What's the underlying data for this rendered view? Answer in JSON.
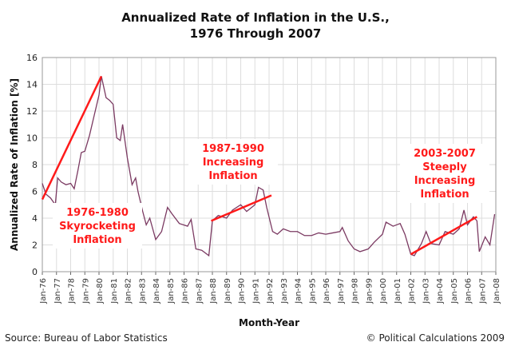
{
  "chart_data": {
    "type": "line",
    "title": "Annualized Rate of Inflation in the U.S.,\n1976 Through 2007",
    "xlabel": "Month-Year",
    "ylabel": "Annualized Rate of Inflation [%]",
    "ylim": [
      0,
      16
    ],
    "yticks": [
      0,
      2,
      4,
      6,
      8,
      10,
      12,
      14,
      16
    ],
    "xlim": [
      "1976-01",
      "2008-01"
    ],
    "xtick_labels": [
      "Jan-76",
      "Jan-77",
      "Jan-78",
      "Jan-79",
      "Jan-80",
      "Jan-81",
      "Jan-82",
      "Jan-83",
      "Jan-84",
      "Jan-85",
      "Jan-86",
      "Jan-87",
      "Jan-88",
      "Jan-89",
      "Jan-90",
      "Jan-91",
      "Jan-92",
      "Jan-93",
      "Jan-94",
      "Jan-95",
      "Jan-96",
      "Jan-97",
      "Jan-98",
      "Jan-99",
      "Jan-00",
      "Jan-01",
      "Jan-02",
      "Jan-03",
      "Jan-04",
      "Jan-05",
      "Jan-06",
      "Jan-07",
      "Jan-08"
    ],
    "grid": true,
    "series_color": "#7b3a62",
    "annotation_color": "#ff1a1a",
    "series": [
      {
        "x": [
          "1976-01",
          "1976-04",
          "1976-08",
          "1976-12",
          "1977-02",
          "1977-05",
          "1977-09",
          "1978-01",
          "1978-04",
          "1978-07",
          "1978-10",
          "1979-01",
          "1979-05",
          "1979-09",
          "1980-01",
          "1980-03",
          "1980-07",
          "1980-10",
          "1981-01",
          "1981-04",
          "1981-07",
          "1981-09",
          "1982-01",
          "1982-05",
          "1982-08",
          "1982-10",
          "1983-02",
          "1983-05",
          "1983-08",
          "1984-01",
          "1984-06",
          "1984-11",
          "1985-03",
          "1985-09",
          "1986-04",
          "1986-07",
          "1986-11",
          "1987-04",
          "1987-10",
          "1988-01",
          "1988-06",
          "1989-01",
          "1989-06",
          "1990-01",
          "1990-06",
          "1991-01",
          "1991-04",
          "1991-08",
          "1991-11",
          "1992-04",
          "1992-08",
          "1993-01",
          "1993-07",
          "1994-01",
          "1994-07",
          "1995-01",
          "1995-07",
          "1996-01",
          "1996-07",
          "1997-01",
          "1997-03",
          "1997-08",
          "1998-01",
          "1998-06",
          "1999-01",
          "1999-06",
          "2000-01",
          "2000-04",
          "2000-10",
          "2001-04",
          "2001-08",
          "2002-01",
          "2002-04",
          "2002-10",
          "2003-02",
          "2003-06",
          "2004-01",
          "2004-06",
          "2005-01",
          "2005-06",
          "2005-10",
          "2006-01",
          "2006-06",
          "2006-09",
          "2006-11",
          "2007-04",
          "2007-08",
          "2007-12"
        ],
        "y": [
          6.6,
          5.8,
          5.5,
          5.0,
          7.0,
          6.7,
          6.5,
          6.6,
          6.2,
          7.5,
          8.9,
          9.0,
          10.2,
          11.7,
          13.2,
          14.6,
          13.0,
          12.8,
          12.5,
          10.0,
          9.8,
          11.0,
          8.5,
          6.5,
          7.0,
          6.0,
          4.5,
          3.5,
          4.0,
          2.4,
          3.0,
          4.8,
          4.3,
          3.6,
          3.4,
          3.9,
          1.7,
          1.6,
          1.2,
          3.8,
          4.2,
          4.0,
          4.6,
          5.0,
          4.5,
          5.0,
          6.3,
          6.1,
          4.8,
          3.0,
          2.8,
          3.2,
          3.0,
          3.0,
          2.7,
          2.7,
          2.9,
          2.8,
          2.9,
          3.0,
          3.3,
          2.3,
          1.7,
          1.5,
          1.7,
          2.2,
          2.8,
          3.7,
          3.4,
          3.6,
          2.8,
          1.3,
          1.2,
          2.1,
          3.0,
          2.1,
          2.0,
          3.0,
          2.8,
          3.2,
          4.6,
          3.5,
          4.1,
          3.8,
          1.5,
          2.6,
          2.0,
          4.3
        ]
      }
    ],
    "annotations": [
      {
        "lines": [
          "1976-1980",
          "Skyrocketing",
          "Inflation"
        ],
        "trend": {
          "x": [
            "1976-01",
            "1980-03"
          ],
          "y": [
            5.4,
            14.6
          ]
        }
      },
      {
        "lines": [
          "1987-1990",
          "Increasing",
          "Inflation"
        ],
        "trend": {
          "x": [
            "1987-12",
            "1992-03"
          ],
          "y": [
            3.8,
            5.7
          ]
        }
      },
      {
        "lines": [
          "2003-2007",
          "Steeply",
          "Increasing",
          "Inflation"
        ],
        "trend": {
          "x": [
            "2002-01",
            "2006-09"
          ],
          "y": [
            1.3,
            4.1
          ]
        }
      }
    ]
  },
  "footer": {
    "source": "Source: Bureau of Labor Statistics",
    "credit": "© Political Calculations 2009"
  }
}
